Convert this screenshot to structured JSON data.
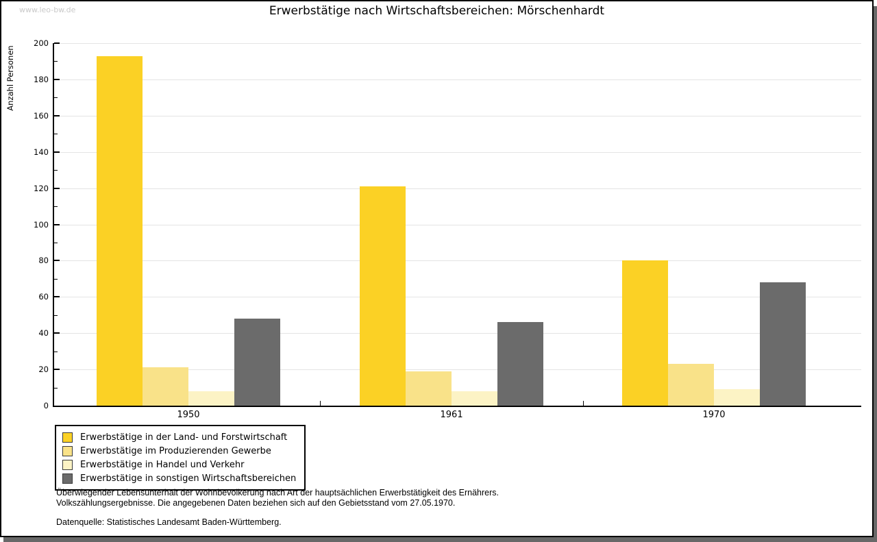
{
  "watermark": "www.leo-bw.de",
  "chart_data": {
    "type": "bar",
    "title": "Erwerbstätige nach Wirtschaftsbereichen: Mörschenhardt",
    "ylabel": "Anzahl Personen",
    "xlabel": "",
    "categories": [
      "1950",
      "1961",
      "1970"
    ],
    "series": [
      {
        "name": "Erwerbstätige in der Land- und Forstwirtschaft",
        "color": "#fbd125",
        "values": [
          193,
          121,
          80
        ]
      },
      {
        "name": "Erwerbstätige im Produzierenden Gewerbe",
        "color": "#f9e289",
        "values": [
          21,
          19,
          23
        ]
      },
      {
        "name": "Erwerbstätige in Handel und Verkehr",
        "color": "#fcf3c5",
        "values": [
          8,
          8,
          9
        ]
      },
      {
        "name": "Erwerbstätige in sonstigen Wirtschaftsbereichen",
        "color": "#6b6b6b",
        "values": [
          48,
          46,
          68
        ]
      }
    ],
    "ylim": [
      0,
      200
    ],
    "yticks": [
      0,
      20,
      40,
      60,
      80,
      100,
      120,
      140,
      160,
      180,
      200
    ],
    "ytick_step": 20,
    "yminor_step": 10,
    "grid": true,
    "legend_position": "bottom-left"
  },
  "footnotes": {
    "line1": "Überwiegender Lebensunterhalt der Wohnbevölkerung nach Art der hauptsächlichen Erwerbstätigkeit des Ernährers.",
    "line2": "Volkszählungsergebnisse. Die angegebenen Daten beziehen sich auf den Gebietsstand vom 27.05.1970.",
    "source": "Datenquelle: Statistisches Landesamt Baden-Württemberg."
  },
  "colors": {
    "axis": "#000000",
    "grid": "#e4e4e4",
    "frame_shadow": "#686868",
    "watermark_text": "#c9c9c9"
  }
}
